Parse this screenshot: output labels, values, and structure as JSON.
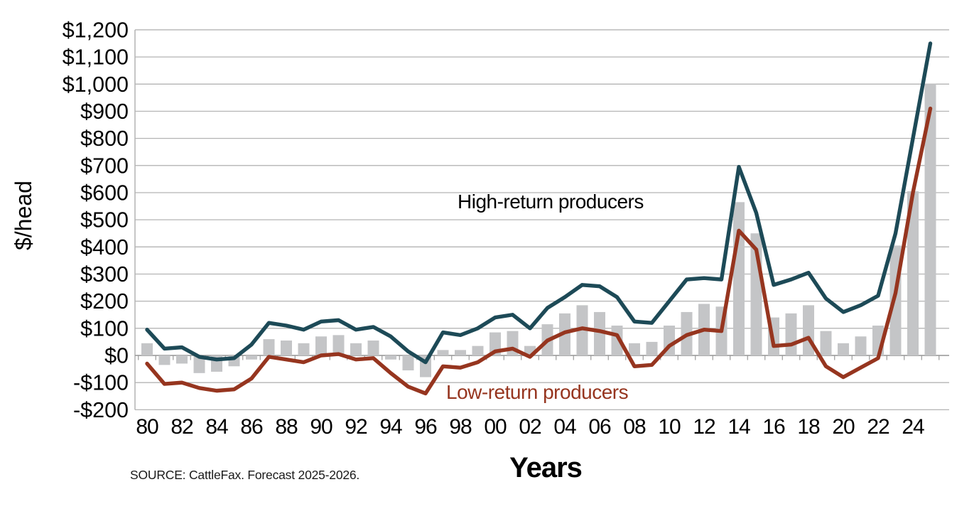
{
  "chart_data": {
    "type": "combo-bar-line",
    "title": "",
    "ylabel": "$/head",
    "xlabel": "Years",
    "source": "SOURCE: CattleFax. Forecast 2025-2026.",
    "ylim": [
      -200,
      1200
    ],
    "grid": true,
    "y_tick_labels": [
      "$1,200",
      "$1,100",
      "$1,000",
      "$900",
      "$800",
      "$700",
      "$600",
      "$500",
      "$400",
      "$300",
      "$200",
      "$100",
      "$0",
      "-$100",
      "-$200"
    ],
    "y_tick_values": [
      1200,
      1100,
      1000,
      900,
      800,
      700,
      600,
      500,
      400,
      300,
      200,
      100,
      0,
      -100,
      -200
    ],
    "x_tick_labels": [
      "80",
      "82",
      "84",
      "86",
      "88",
      "90",
      "92",
      "94",
      "96",
      "98",
      "00",
      "02",
      "04",
      "06",
      "08",
      "10",
      "12",
      "14",
      "16",
      "18",
      "20",
      "22",
      "24"
    ],
    "years": [
      1980,
      1981,
      1982,
      1983,
      1984,
      1985,
      1986,
      1987,
      1988,
      1989,
      1990,
      1991,
      1992,
      1993,
      1994,
      1995,
      1996,
      1997,
      1998,
      1999,
      2000,
      2001,
      2002,
      2003,
      2004,
      2005,
      2006,
      2007,
      2008,
      2009,
      2010,
      2011,
      2012,
      2013,
      2014,
      2015,
      2016,
      2017,
      2018,
      2019,
      2020,
      2021,
      2022,
      2023,
      2024,
      2025
    ],
    "series": [
      {
        "id": "bars",
        "type": "bar",
        "label": "",
        "color": "#c4c5c7",
        "values": [
          45,
          -35,
          -30,
          -65,
          -60,
          -40,
          -15,
          60,
          55,
          45,
          70,
          75,
          45,
          55,
          -15,
          -55,
          -80,
          20,
          20,
          35,
          85,
          90,
          35,
          115,
          155,
          185,
          160,
          110,
          45,
          50,
          110,
          160,
          190,
          180,
          565,
          450,
          140,
          155,
          185,
          90,
          45,
          70,
          110,
          405,
          605,
          1000
        ]
      },
      {
        "id": "high",
        "type": "line",
        "label": "High-return producers",
        "color": "#1d4a57",
        "values": [
          95,
          25,
          30,
          -5,
          -15,
          -10,
          40,
          120,
          110,
          95,
          125,
          130,
          95,
          105,
          70,
          15,
          -25,
          85,
          75,
          100,
          140,
          150,
          100,
          175,
          215,
          260,
          255,
          215,
          125,
          120,
          200,
          280,
          285,
          280,
          695,
          525,
          260,
          280,
          305,
          210,
          160,
          185,
          220,
          450,
          800,
          1150
        ]
      },
      {
        "id": "low",
        "type": "line",
        "label": "Low-return producers",
        "color": "#96351f",
        "values": [
          -30,
          -105,
          -100,
          -120,
          -130,
          -125,
          -85,
          -5,
          -15,
          -25,
          0,
          5,
          -15,
          -10,
          -65,
          -115,
          -140,
          -40,
          -45,
          -25,
          15,
          25,
          -5,
          55,
          85,
          100,
          90,
          75,
          -40,
          -35,
          35,
          75,
          95,
          90,
          460,
          390,
          35,
          40,
          65,
          -40,
          -80,
          -45,
          -10,
          230,
          600,
          910
        ]
      }
    ],
    "annotations": [
      {
        "text": "High-return producers",
        "series": "high",
        "color": "#000000"
      },
      {
        "text": "Low-return producers",
        "series": "low",
        "color": "#96351f"
      }
    ],
    "colors": {
      "bar": "#c4c5c7",
      "high_line": "#1d4a57",
      "low_line": "#96351f",
      "gridline": "#b4b4b4",
      "zero_axis": "#9a9a9a",
      "axis_line": "#b4b4b4",
      "text": "#000000"
    }
  }
}
